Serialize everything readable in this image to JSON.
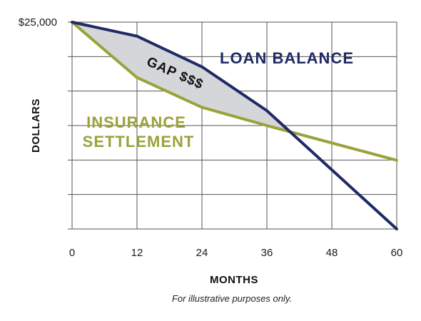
{
  "chart_data": {
    "type": "line",
    "x": [
      0,
      12,
      24,
      36,
      48,
      60
    ],
    "x_tick_labels": [
      "0",
      "12",
      "24",
      "36",
      "48",
      "60"
    ],
    "y_top_label": "$25,000",
    "xlabel": "MONTHS",
    "ylabel": "DOLLARS",
    "xlim": [
      0,
      60
    ],
    "ylim": [
      0,
      25000
    ],
    "grid": true,
    "series": [
      {
        "name": "LOAN BALANCE",
        "color": "#1f2a66",
        "x": [
          0,
          12,
          24,
          36,
          60
        ],
        "values": [
          25000,
          23300,
          19600,
          14300,
          0
        ]
      },
      {
        "name": "INSURANCE SETTLEMENT",
        "name_lines": [
          "INSURANCE",
          "SETTLEMENT"
        ],
        "color": "#9aa23a",
        "x": [
          0,
          12,
          24,
          36,
          60
        ],
        "values": [
          25000,
          18300,
          14700,
          12500,
          8300
        ]
      }
    ],
    "gap_annotation": "GAP $$$",
    "gap_fill_color": "#d5d6d9",
    "footnote": "For illustrative purposes only."
  }
}
